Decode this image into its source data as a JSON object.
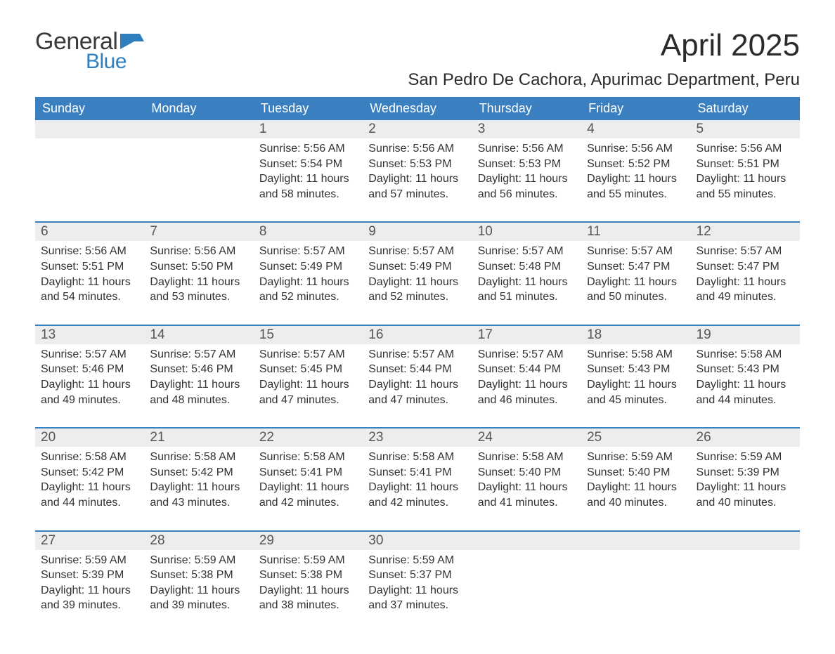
{
  "logo": {
    "text1": "General",
    "text2": "Blue",
    "color1": "#3a3a3a",
    "color2": "#2f7fbf",
    "flag_color": "#2f7fbf"
  },
  "title": "April 2025",
  "location": "San Pedro De Cachora, Apurimac Department, Peru",
  "colors": {
    "header_bg": "#3a7fbf",
    "header_text": "#ffffff",
    "daynum_bg": "#ededed",
    "week_border": "#3a7fbf",
    "text": "#333333",
    "page_bg": "#ffffff"
  },
  "day_headers": [
    "Sunday",
    "Monday",
    "Tuesday",
    "Wednesday",
    "Thursday",
    "Friday",
    "Saturday"
  ],
  "weeks": [
    [
      null,
      null,
      {
        "n": "1",
        "sr": "5:56 AM",
        "ss": "5:54 PM",
        "dl": "11 hours and 58 minutes."
      },
      {
        "n": "2",
        "sr": "5:56 AM",
        "ss": "5:53 PM",
        "dl": "11 hours and 57 minutes."
      },
      {
        "n": "3",
        "sr": "5:56 AM",
        "ss": "5:53 PM",
        "dl": "11 hours and 56 minutes."
      },
      {
        "n": "4",
        "sr": "5:56 AM",
        "ss": "5:52 PM",
        "dl": "11 hours and 55 minutes."
      },
      {
        "n": "5",
        "sr": "5:56 AM",
        "ss": "5:51 PM",
        "dl": "11 hours and 55 minutes."
      }
    ],
    [
      {
        "n": "6",
        "sr": "5:56 AM",
        "ss": "5:51 PM",
        "dl": "11 hours and 54 minutes."
      },
      {
        "n": "7",
        "sr": "5:56 AM",
        "ss": "5:50 PM",
        "dl": "11 hours and 53 minutes."
      },
      {
        "n": "8",
        "sr": "5:57 AM",
        "ss": "5:49 PM",
        "dl": "11 hours and 52 minutes."
      },
      {
        "n": "9",
        "sr": "5:57 AM",
        "ss": "5:49 PM",
        "dl": "11 hours and 52 minutes."
      },
      {
        "n": "10",
        "sr": "5:57 AM",
        "ss": "5:48 PM",
        "dl": "11 hours and 51 minutes."
      },
      {
        "n": "11",
        "sr": "5:57 AM",
        "ss": "5:47 PM",
        "dl": "11 hours and 50 minutes."
      },
      {
        "n": "12",
        "sr": "5:57 AM",
        "ss": "5:47 PM",
        "dl": "11 hours and 49 minutes."
      }
    ],
    [
      {
        "n": "13",
        "sr": "5:57 AM",
        "ss": "5:46 PM",
        "dl": "11 hours and 49 minutes."
      },
      {
        "n": "14",
        "sr": "5:57 AM",
        "ss": "5:46 PM",
        "dl": "11 hours and 48 minutes."
      },
      {
        "n": "15",
        "sr": "5:57 AM",
        "ss": "5:45 PM",
        "dl": "11 hours and 47 minutes."
      },
      {
        "n": "16",
        "sr": "5:57 AM",
        "ss": "5:44 PM",
        "dl": "11 hours and 47 minutes."
      },
      {
        "n": "17",
        "sr": "5:57 AM",
        "ss": "5:44 PM",
        "dl": "11 hours and 46 minutes."
      },
      {
        "n": "18",
        "sr": "5:58 AM",
        "ss": "5:43 PM",
        "dl": "11 hours and 45 minutes."
      },
      {
        "n": "19",
        "sr": "5:58 AM",
        "ss": "5:43 PM",
        "dl": "11 hours and 44 minutes."
      }
    ],
    [
      {
        "n": "20",
        "sr": "5:58 AM",
        "ss": "5:42 PM",
        "dl": "11 hours and 44 minutes."
      },
      {
        "n": "21",
        "sr": "5:58 AM",
        "ss": "5:42 PM",
        "dl": "11 hours and 43 minutes."
      },
      {
        "n": "22",
        "sr": "5:58 AM",
        "ss": "5:41 PM",
        "dl": "11 hours and 42 minutes."
      },
      {
        "n": "23",
        "sr": "5:58 AM",
        "ss": "5:41 PM",
        "dl": "11 hours and 42 minutes."
      },
      {
        "n": "24",
        "sr": "5:58 AM",
        "ss": "5:40 PM",
        "dl": "11 hours and 41 minutes."
      },
      {
        "n": "25",
        "sr": "5:59 AM",
        "ss": "5:40 PM",
        "dl": "11 hours and 40 minutes."
      },
      {
        "n": "26",
        "sr": "5:59 AM",
        "ss": "5:39 PM",
        "dl": "11 hours and 40 minutes."
      }
    ],
    [
      {
        "n": "27",
        "sr": "5:59 AM",
        "ss": "5:39 PM",
        "dl": "11 hours and 39 minutes."
      },
      {
        "n": "28",
        "sr": "5:59 AM",
        "ss": "5:38 PM",
        "dl": "11 hours and 39 minutes."
      },
      {
        "n": "29",
        "sr": "5:59 AM",
        "ss": "5:38 PM",
        "dl": "11 hours and 38 minutes."
      },
      {
        "n": "30",
        "sr": "5:59 AM",
        "ss": "5:37 PM",
        "dl": "11 hours and 37 minutes."
      },
      null,
      null,
      null
    ]
  ],
  "labels": {
    "sunrise": "Sunrise:",
    "sunset": "Sunset:",
    "daylight": "Daylight:"
  }
}
